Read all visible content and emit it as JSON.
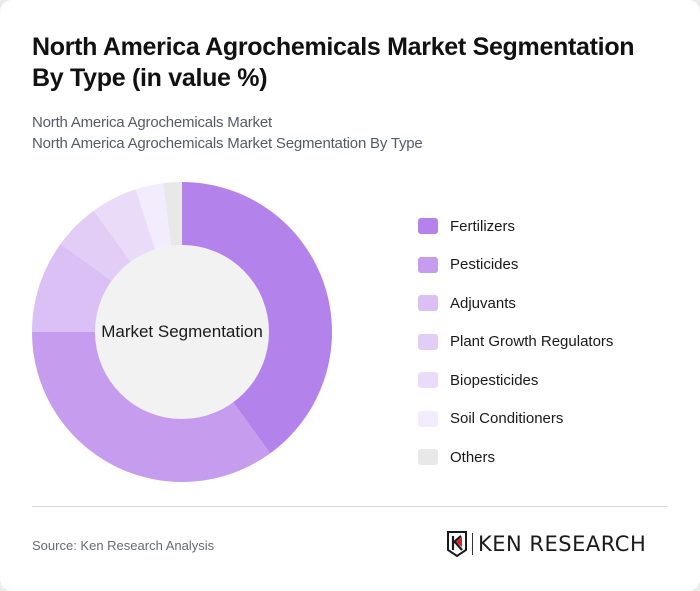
{
  "header": {
    "title": "North America Agrochemicals Market Segmentation By Type (in value %)",
    "subtitle_1": "North America Agrochemicals Market",
    "subtitle_2": "North America Agrochemicals Market Segmentation By Type"
  },
  "chart_data": {
    "type": "pie",
    "variant": "donut",
    "title": "North America Agrochemicals Market Segmentation By Type (in value %)",
    "center_label": "Market Segmentation",
    "categories": [
      "Fertilizers",
      "Pesticides",
      "Adjuvants",
      "Plant Growth Regulators",
      "Biopesticides",
      "Soil Conditioners",
      "Others"
    ],
    "values": [
      40,
      35,
      10,
      5,
      5,
      3,
      2
    ],
    "colors": [
      "#b382ea",
      "#c59cee",
      "#dac0f5",
      "#e2cdf7",
      "#eadcf9",
      "#f3ecfc",
      "#e8e8e8"
    ],
    "legend_position": "right",
    "start_angle_deg": 0,
    "direction": "clockwise"
  },
  "legend": {
    "items": [
      {
        "label": "Fertilizers",
        "color": "#b382ea"
      },
      {
        "label": "Pesticides",
        "color": "#c59cee"
      },
      {
        "label": "Adjuvants",
        "color": "#dac0f5"
      },
      {
        "label": "Plant Growth Regulators",
        "color": "#e2cdf7"
      },
      {
        "label": "Biopesticides",
        "color": "#eadcf9"
      },
      {
        "label": "Soil Conditioners",
        "color": "#f3ecfc"
      },
      {
        "label": "Others",
        "color": "#e8e8e8"
      }
    ]
  },
  "footer": {
    "source": "Source: Ken Research Analysis",
    "logo_text": "KEN RESEARCH",
    "logo_accent": "#d0232a"
  },
  "colors": {
    "center_fill": "#f2f2f2"
  }
}
